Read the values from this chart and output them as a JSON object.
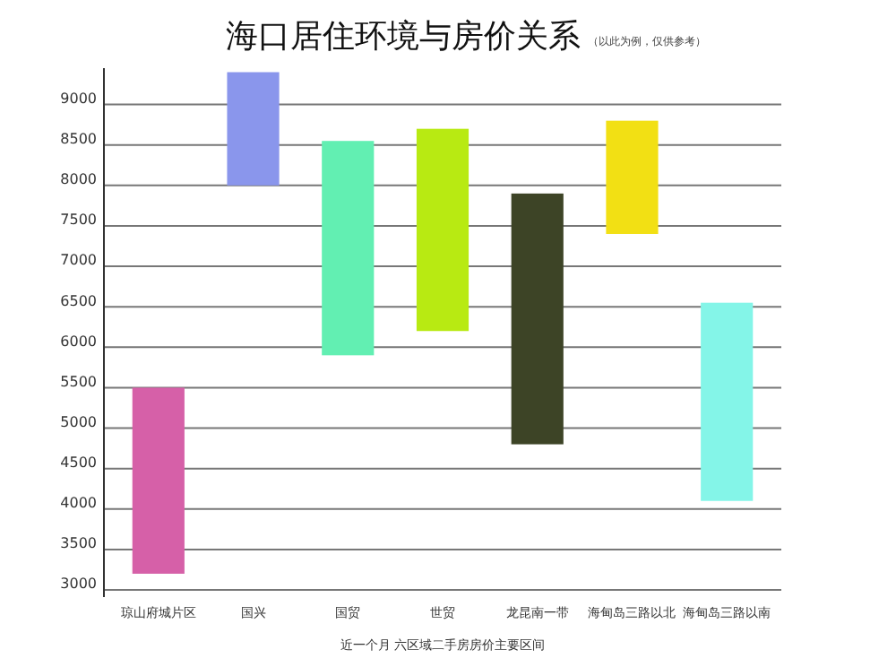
{
  "chart_data": {
    "type": "bar",
    "title": "海口居住环境与房价关系",
    "subtitle": "（以此为例，仅供参考）",
    "xlabel": "近一个月 六区域二手房房价主要区间",
    "categories": [
      "琼山府城片区",
      "国兴",
      "国贸",
      "世贸",
      "龙昆南一带",
      "海甸岛三路以北",
      "海甸岛三路以南"
    ],
    "base": [
      3200,
      8000,
      5900,
      6200,
      4800,
      7400,
      4100
    ],
    "values": [
      2300,
      1400,
      2650,
      2500,
      3100,
      1400,
      2450
    ],
    "colors": [
      "#d660a8",
      "#8a96ec",
      "#62efb2",
      "#b8ea12",
      "#3d4426",
      "#f2e014",
      "#84f5e8"
    ],
    "ylim": [
      3000,
      9450
    ],
    "yticks": [
      3000,
      3500,
      4000,
      4500,
      5000,
      5500,
      6000,
      6500,
      7000,
      7500,
      8000,
      8500,
      9000
    ],
    "grid": "y"
  }
}
